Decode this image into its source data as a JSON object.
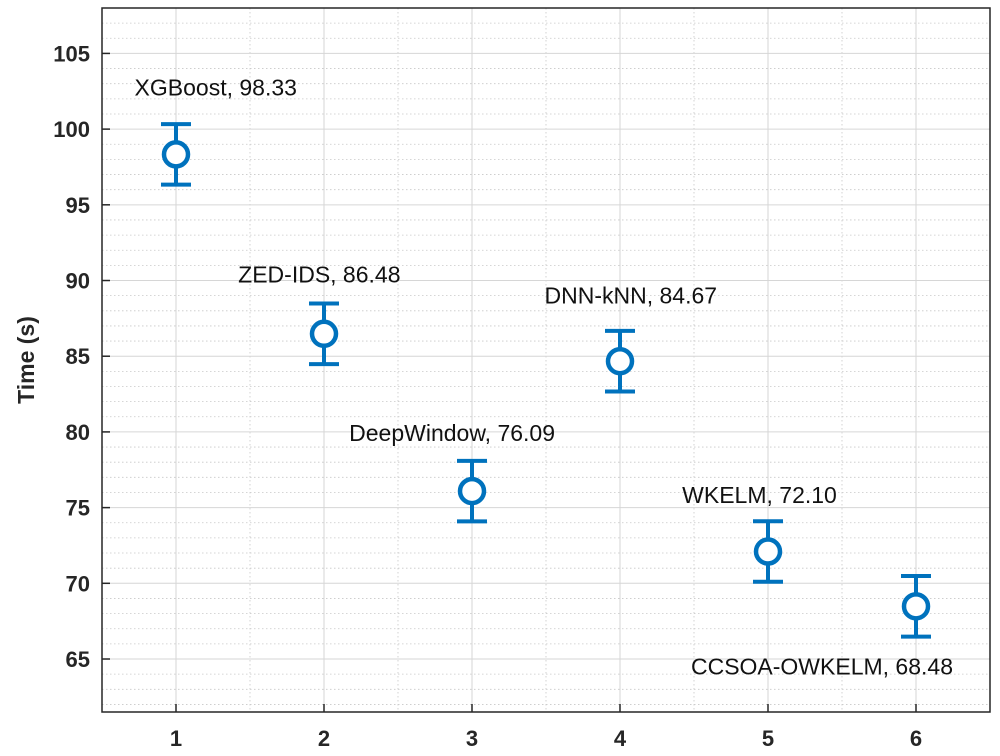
{
  "chart_data": {
    "type": "scatter",
    "title": "",
    "xlabel": "",
    "ylabel": "Time (s)",
    "xlim": [
      0.5,
      6.5
    ],
    "ylim": [
      61.5,
      108
    ],
    "x_ticks": [
      1,
      2,
      3,
      4,
      5,
      6
    ],
    "y_ticks": [
      65,
      70,
      75,
      80,
      85,
      90,
      95,
      100,
      105
    ],
    "grid": true,
    "minor_grid": true,
    "marker": "circle",
    "error_bar_halfwidth": 2.0,
    "color": "#0072BD",
    "points": [
      {
        "x": 1,
        "y": 98.33,
        "label": "XGBoost, 98.33",
        "label_anchor": "start",
        "label_dx": -0.28,
        "label_dy": 3.9
      },
      {
        "x": 2,
        "y": 86.48,
        "label": "ZED-IDS, 86.48",
        "label_anchor": "start",
        "label_dx": -0.58,
        "label_dy": 3.4
      },
      {
        "x": 3,
        "y": 76.09,
        "label": "DeepWindow, 76.09",
        "label_anchor": "start",
        "label_dx": -0.83,
        "label_dy": 3.3
      },
      {
        "x": 4,
        "y": 84.67,
        "label": "DNN-kNN, 84.67",
        "label_anchor": "start",
        "label_dx": -0.51,
        "label_dy": 3.8
      },
      {
        "x": 5,
        "y": 72.1,
        "label": "WKELM, 72.10",
        "label_anchor": "start",
        "label_dx": -0.58,
        "label_dy": 3.2
      },
      {
        "x": 6,
        "y": 68.48,
        "label": "CCSOA-OWKELM, 68.48",
        "label_anchor": "end",
        "label_dx": 0.25,
        "label_dy": -4.5
      }
    ]
  }
}
